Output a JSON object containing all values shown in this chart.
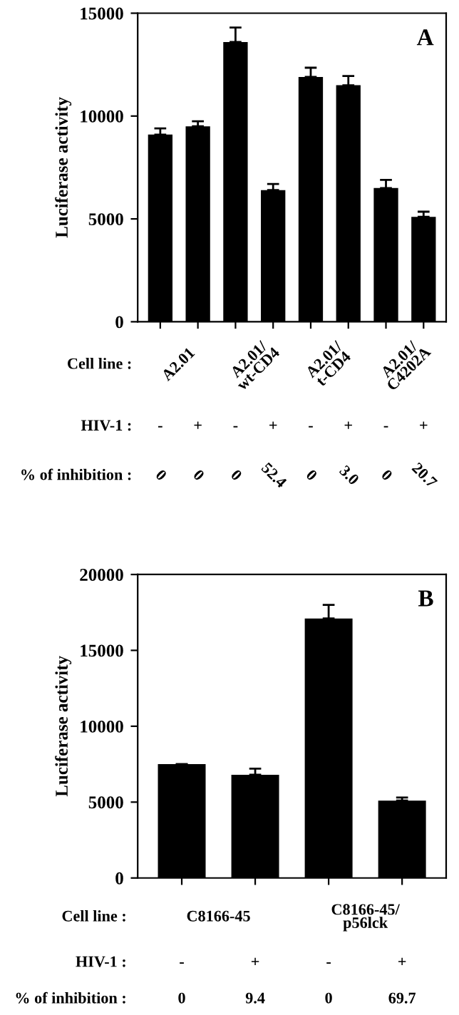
{
  "chart_data": [
    {
      "type": "bar",
      "title": "A",
      "ylabel": "Luciferase activity",
      "categories": [
        "-",
        "+",
        "-",
        "+",
        "-",
        "+",
        "-",
        "+"
      ],
      "values": [
        9100,
        9500,
        13600,
        6400,
        11900,
        11500,
        6500,
        5100
      ],
      "errors": [
        300,
        250,
        700,
        300,
        450,
        450,
        400,
        250
      ],
      "color": "#000000",
      "ylim": [
        0,
        15000
      ],
      "yticks": [
        0,
        5000,
        10000,
        15000
      ],
      "grid": false,
      "annotations": [
        "Cell line :",
        "HIV-1 :",
        "% of inhibition :",
        "A2.01",
        "A2.01/\nwt-CD4",
        "A2.01/\nt-CD4",
        "A2.01/\nC4202A",
        "0",
        "0",
        "0",
        "52.4",
        "0",
        "3.0",
        "0",
        "20.7"
      ]
    },
    {
      "type": "bar",
      "title": "B",
      "ylabel": "Luciferase activity",
      "categories": [
        "-",
        "+",
        "-",
        "+"
      ],
      "values": [
        7500,
        6800,
        17100,
        5100
      ],
      "errors": [
        null,
        400,
        900,
        200
      ],
      "color": "#000000",
      "ylim": [
        0,
        20000
      ],
      "yticks": [
        0,
        5000,
        10000,
        15000,
        20000
      ],
      "grid": false,
      "annotations": [
        "Cell line :",
        "HIV-1 :",
        "% of inhibition :",
        "C8166-45",
        "C8166-45/\np56lck",
        "0",
        "9.4",
        "0",
        "69.7"
      ]
    }
  ]
}
